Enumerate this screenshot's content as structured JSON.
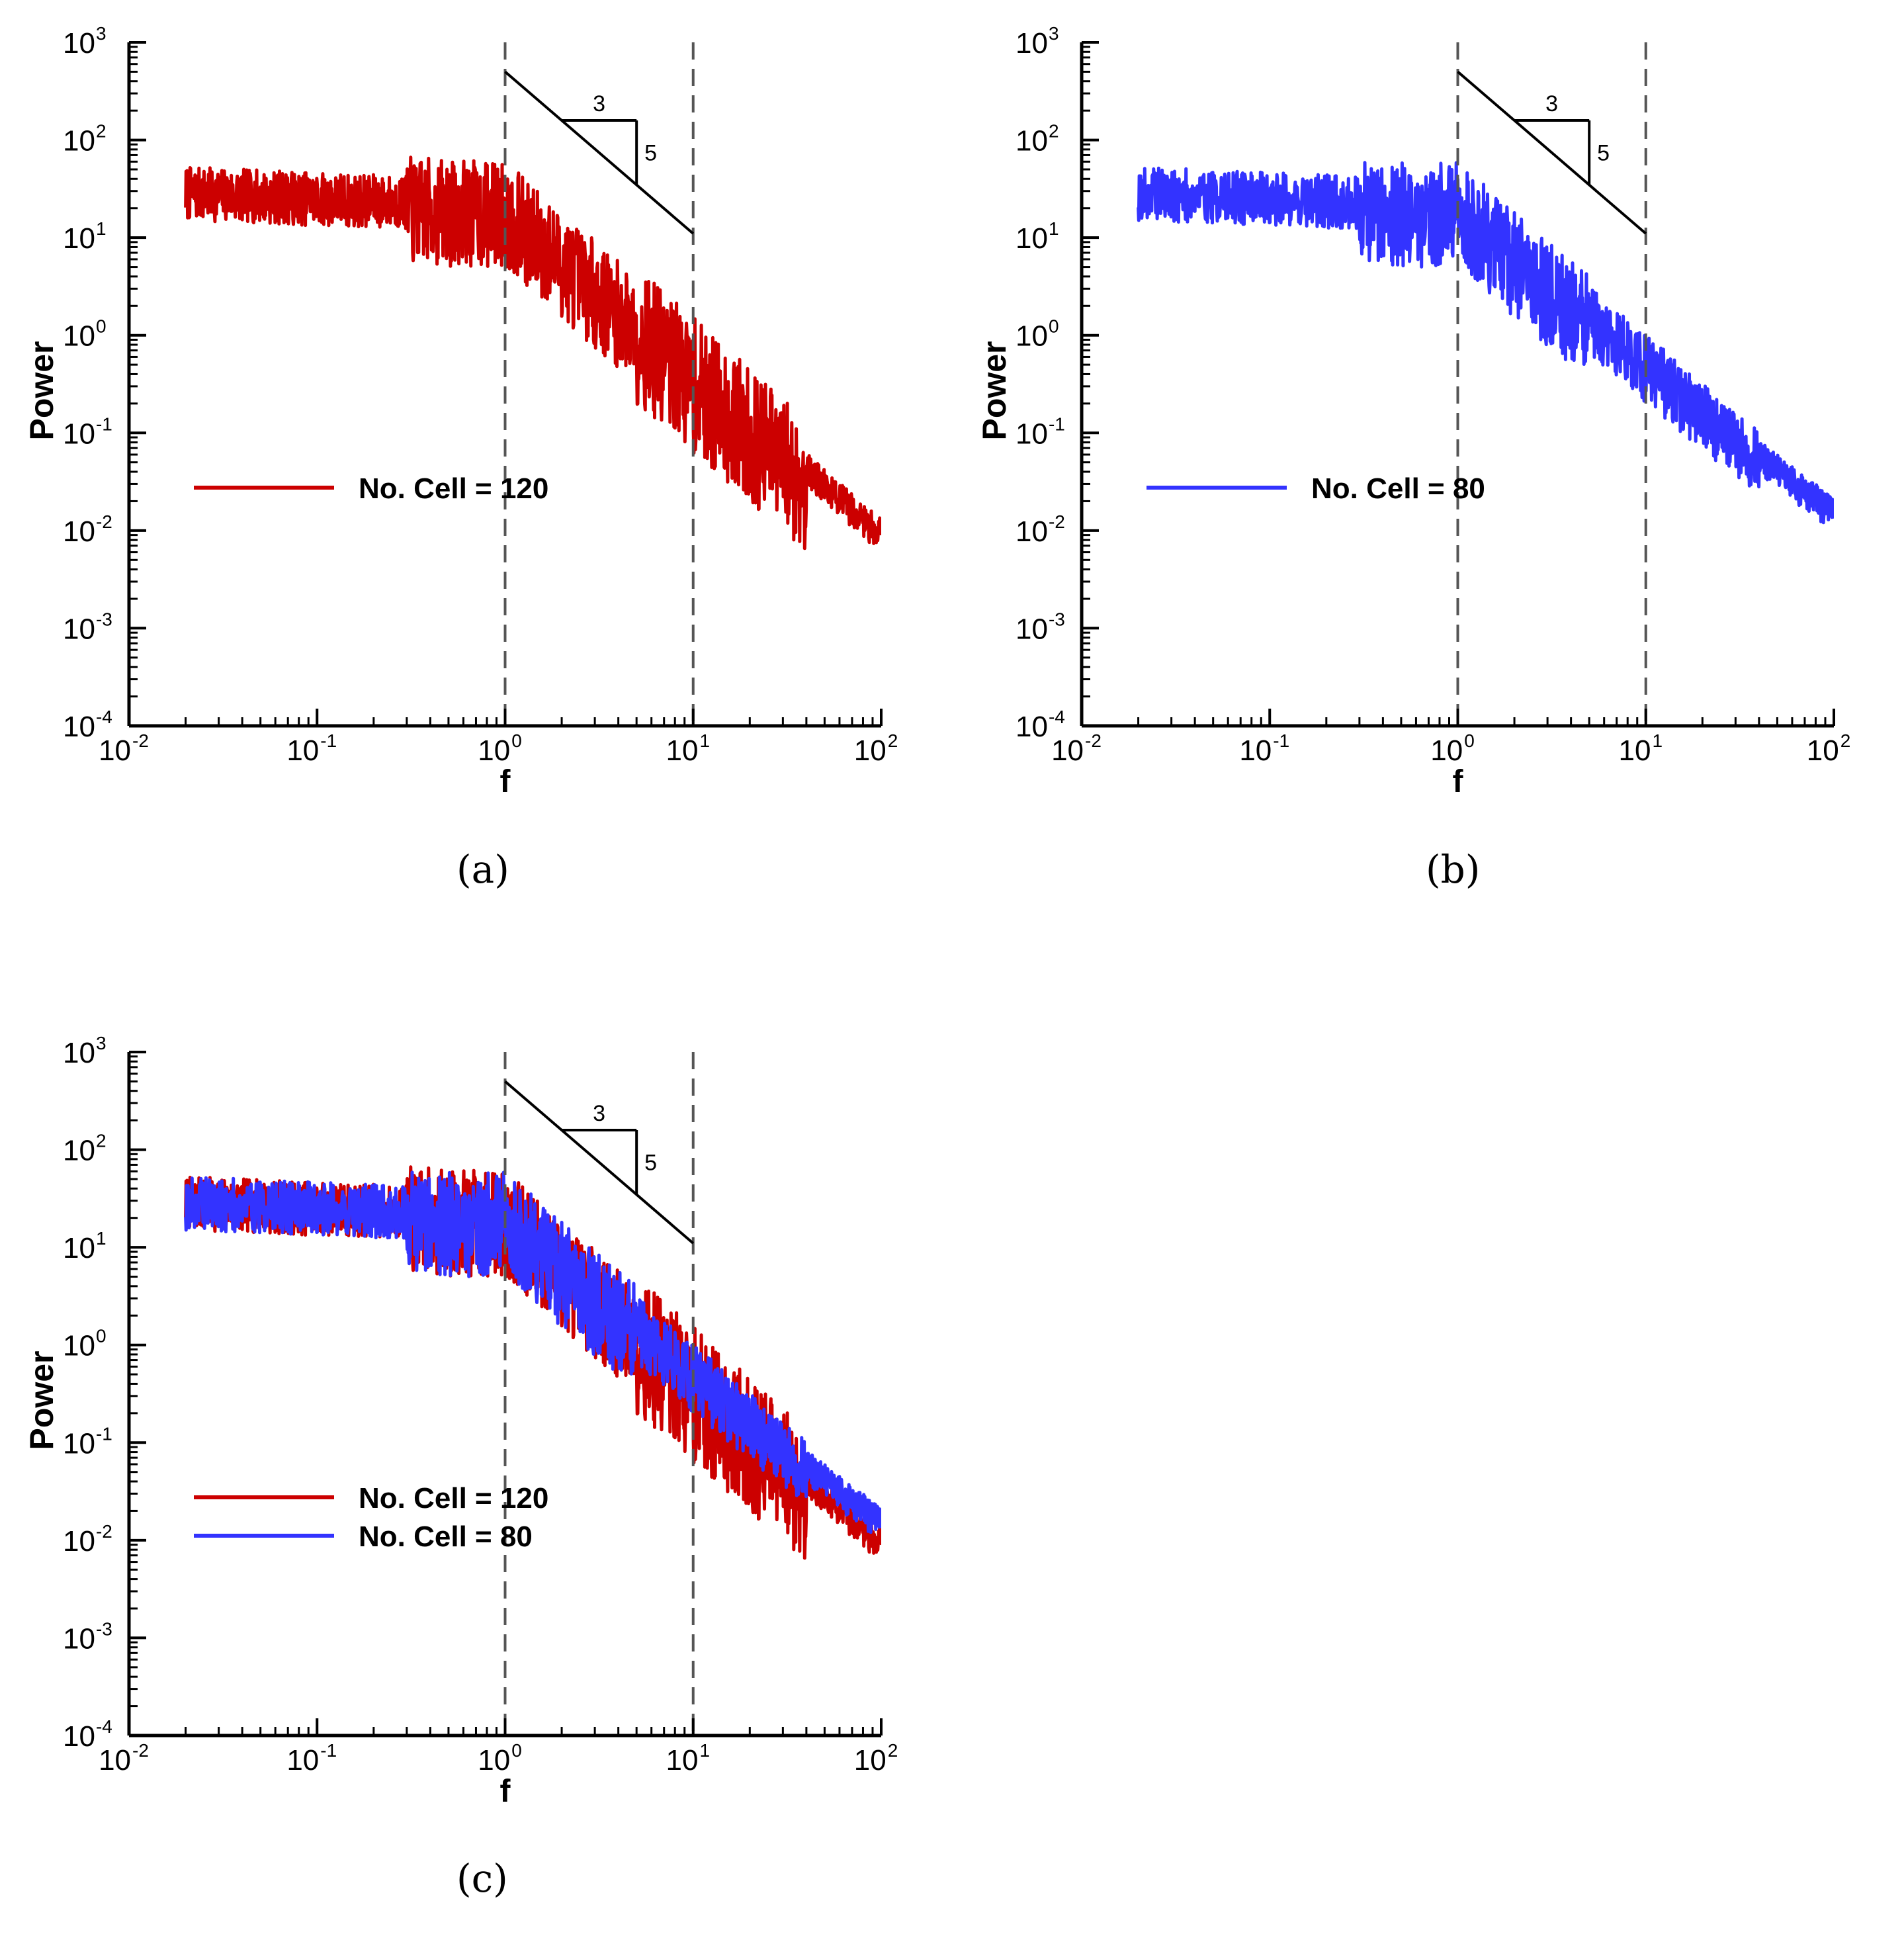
{
  "colors": {
    "red": "#cc0000",
    "blue": "#3333ff",
    "axis": "#000000",
    "guide": "#555555"
  },
  "chart_data": [
    {
      "id": "a",
      "caption": "(a)",
      "type": "line",
      "scale": "log-log",
      "xlabel": "f",
      "ylabel": "Power",
      "xlim": [
        0.01,
        100
      ],
      "ylim": [
        0.0001,
        1000
      ],
      "x_ticks": [
        {
          "base": "10",
          "exp": "-2"
        },
        {
          "base": "10",
          "exp": "-1"
        },
        {
          "base": "10",
          "exp": "0"
        },
        {
          "base": "10",
          "exp": "1"
        },
        {
          "base": "10",
          "exp": "2"
        }
      ],
      "y_ticks": [
        {
          "base": "10",
          "exp": "-4"
        },
        {
          "base": "10",
          "exp": "-3"
        },
        {
          "base": "10",
          "exp": "-2"
        },
        {
          "base": "10",
          "exp": "-1"
        },
        {
          "base": "10",
          "exp": "0"
        },
        {
          "base": "10",
          "exp": "1"
        },
        {
          "base": "10",
          "exp": "2"
        },
        {
          "base": "10",
          "exp": "3"
        }
      ],
      "reference_lines_x": [
        1,
        10
      ],
      "slope_annotation": {
        "start": [
          1,
          500
        ],
        "end": [
          10,
          11
        ],
        "run_label": "3",
        "rise_label": "5",
        "triangle_x": [
          2,
          5
        ],
        "triangle_y_top": 170
      },
      "legend": [
        {
          "label": "No. Cell = 120",
          "color": "red"
        }
      ],
      "series": [
        {
          "name": "No. Cell = 120",
          "color": "red",
          "seed": 7,
          "highfreq": "flat"
        }
      ]
    },
    {
      "id": "b",
      "caption": "(b)",
      "type": "line",
      "scale": "log-log",
      "xlabel": "f",
      "ylabel": "Power",
      "xlim": [
        0.01,
        100
      ],
      "ylim": [
        0.0001,
        1000
      ],
      "x_ticks": [
        {
          "base": "10",
          "exp": "-2"
        },
        {
          "base": "10",
          "exp": "-1"
        },
        {
          "base": "10",
          "exp": "0"
        },
        {
          "base": "10",
          "exp": "1"
        },
        {
          "base": "10",
          "exp": "2"
        }
      ],
      "y_ticks": [
        {
          "base": "10",
          "exp": "-4"
        },
        {
          "base": "10",
          "exp": "-3"
        },
        {
          "base": "10",
          "exp": "-2"
        },
        {
          "base": "10",
          "exp": "-1"
        },
        {
          "base": "10",
          "exp": "0"
        },
        {
          "base": "10",
          "exp": "1"
        },
        {
          "base": "10",
          "exp": "2"
        },
        {
          "base": "10",
          "exp": "3"
        }
      ],
      "reference_lines_x": [
        1,
        10
      ],
      "slope_annotation": {
        "start": [
          1,
          500
        ],
        "end": [
          10,
          11
        ],
        "run_label": "3",
        "rise_label": "5",
        "triangle_x": [
          2,
          5
        ],
        "triangle_y_top": 170
      },
      "legend": [
        {
          "label": "No. Cell = 80",
          "color": "blue"
        }
      ],
      "series": [
        {
          "name": "No. Cell = 80",
          "color": "blue",
          "seed": 19,
          "highfreq": "decay"
        }
      ]
    },
    {
      "id": "c",
      "caption": "(c)",
      "type": "line",
      "scale": "log-log",
      "xlabel": "f",
      "ylabel": "Power",
      "xlim": [
        0.01,
        100
      ],
      "ylim": [
        0.0001,
        1000
      ],
      "x_ticks": [
        {
          "base": "10",
          "exp": "-2"
        },
        {
          "base": "10",
          "exp": "-1"
        },
        {
          "base": "10",
          "exp": "0"
        },
        {
          "base": "10",
          "exp": "1"
        },
        {
          "base": "10",
          "exp": "2"
        }
      ],
      "y_ticks": [
        {
          "base": "10",
          "exp": "-4"
        },
        {
          "base": "10",
          "exp": "-3"
        },
        {
          "base": "10",
          "exp": "-2"
        },
        {
          "base": "10",
          "exp": "-1"
        },
        {
          "base": "10",
          "exp": "0"
        },
        {
          "base": "10",
          "exp": "1"
        },
        {
          "base": "10",
          "exp": "2"
        },
        {
          "base": "10",
          "exp": "3"
        }
      ],
      "reference_lines_x": [
        1,
        10
      ],
      "slope_annotation": {
        "start": [
          1,
          500
        ],
        "end": [
          10,
          11
        ],
        "run_label": "3",
        "rise_label": "5",
        "triangle_x": [
          2,
          5
        ],
        "triangle_y_top": 170
      },
      "legend": [
        {
          "label": "No. Cell = 120",
          "color": "red"
        },
        {
          "label": "No. Cell = 80",
          "color": "blue"
        }
      ],
      "series": [
        {
          "name": "No. Cell = 120",
          "color": "red",
          "seed": 7,
          "highfreq": "flat"
        },
        {
          "name": "No. Cell = 80",
          "color": "blue",
          "seed": 19,
          "highfreq": "decay"
        }
      ]
    }
  ]
}
